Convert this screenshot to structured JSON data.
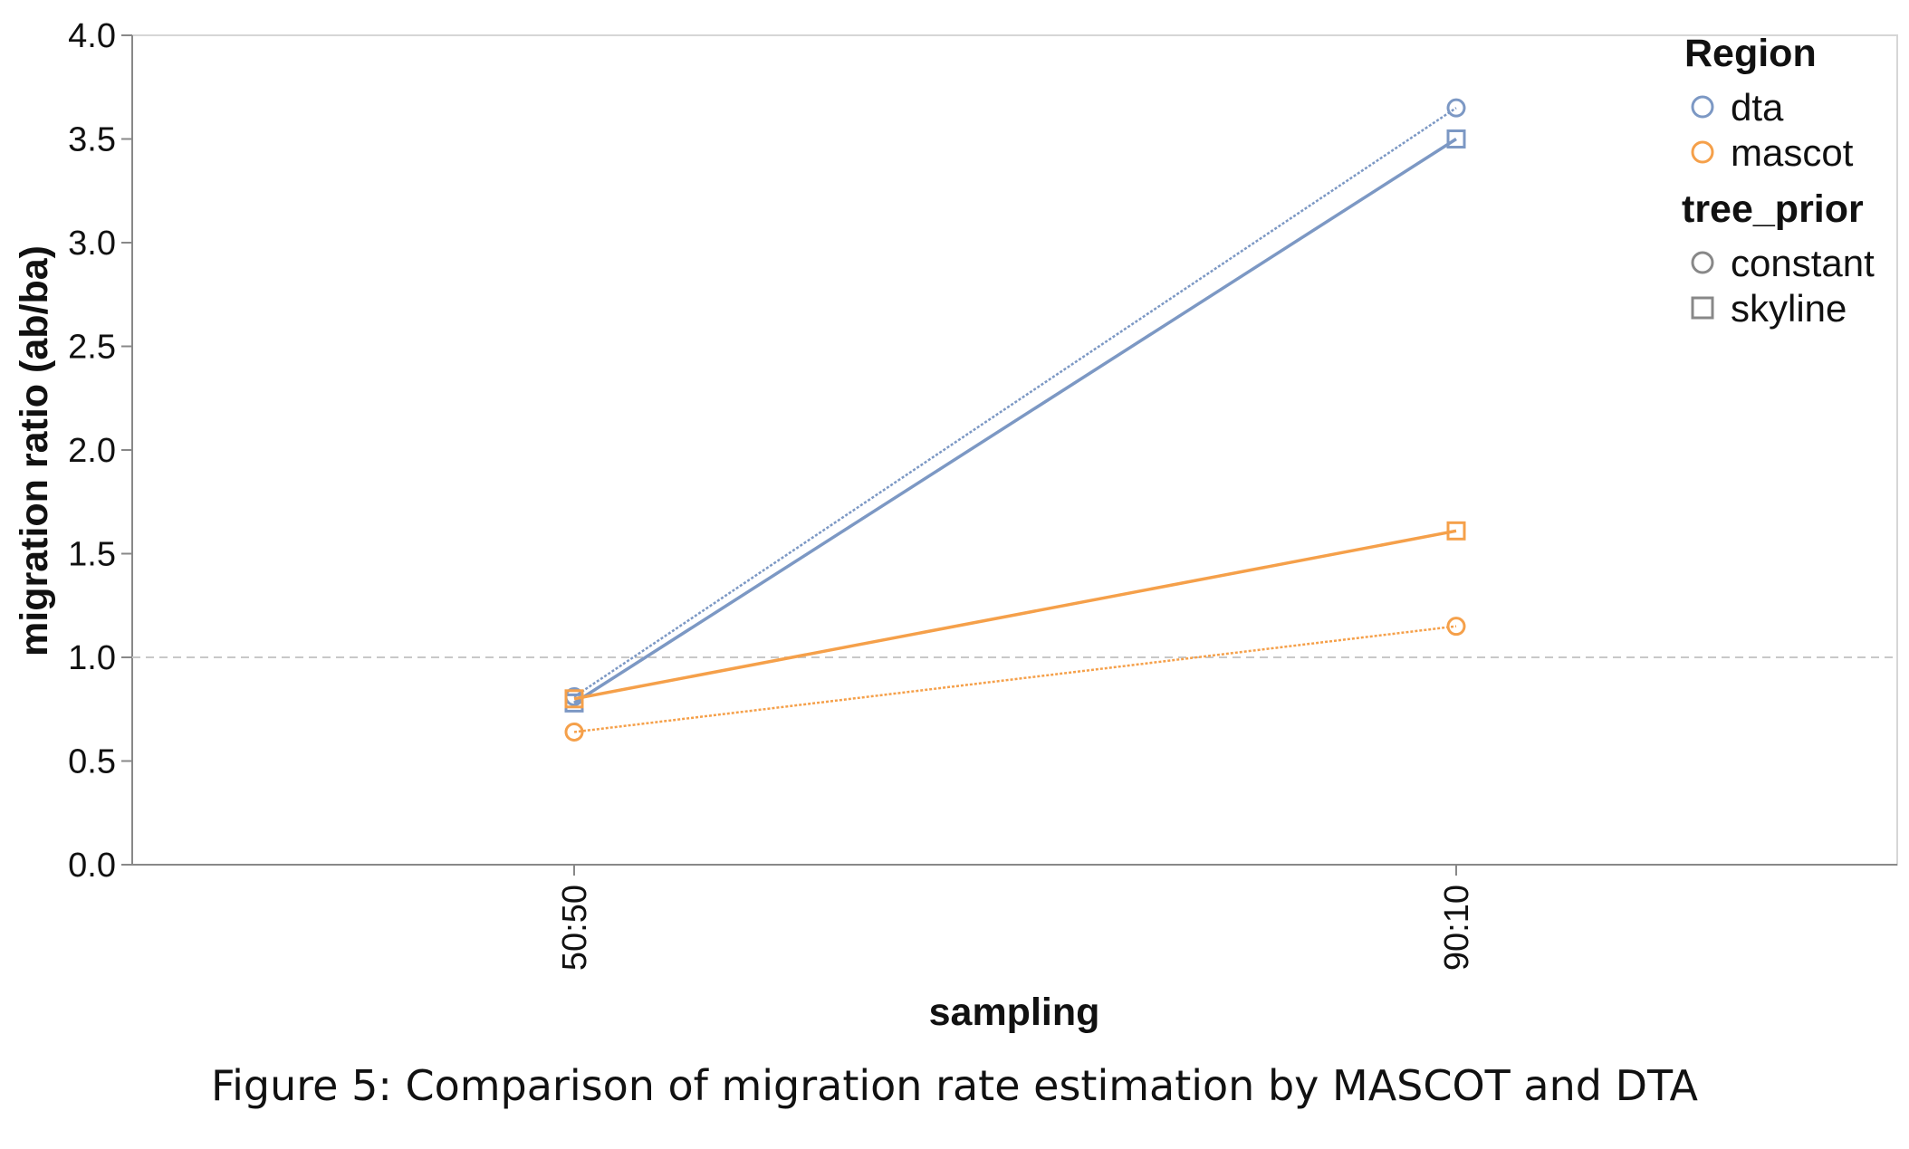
{
  "caption": "Figure 5: Comparison of migration rate estimation by MASCOT and DTA",
  "colors": {
    "dta": "#7c98c4",
    "mascot": "#f5a04a",
    "axis": "#888888",
    "grid": "#bbbbbb",
    "reference": "#c8c8c8"
  },
  "chart_data": {
    "type": "line",
    "xlabel": "sampling",
    "ylabel": "migration ratio (ab/ba)",
    "categories": [
      "50:50",
      "90:10"
    ],
    "ylim": [
      0,
      4
    ],
    "yticks": [
      "0.0",
      "0.5",
      "1.0",
      "1.5",
      "2.0",
      "2.5",
      "3.0",
      "3.5",
      "4.0"
    ],
    "grid": false,
    "reference_line": 1.0,
    "series": [
      {
        "region": "dta",
        "tree_prior": "constant",
        "values": [
          0.81,
          3.65
        ]
      },
      {
        "region": "dta",
        "tree_prior": "skyline",
        "values": [
          0.78,
          3.5
        ]
      },
      {
        "region": "mascot",
        "tree_prior": "constant",
        "values": [
          0.64,
          1.15
        ]
      },
      {
        "region": "mascot",
        "tree_prior": "skyline",
        "values": [
          0.8,
          1.61
        ]
      }
    ],
    "legend": {
      "position": "top-right",
      "region_title": "Region",
      "region_items": [
        "dta",
        "mascot"
      ],
      "prior_title": "tree_prior",
      "prior_items": [
        "constant",
        "skyline"
      ]
    }
  }
}
